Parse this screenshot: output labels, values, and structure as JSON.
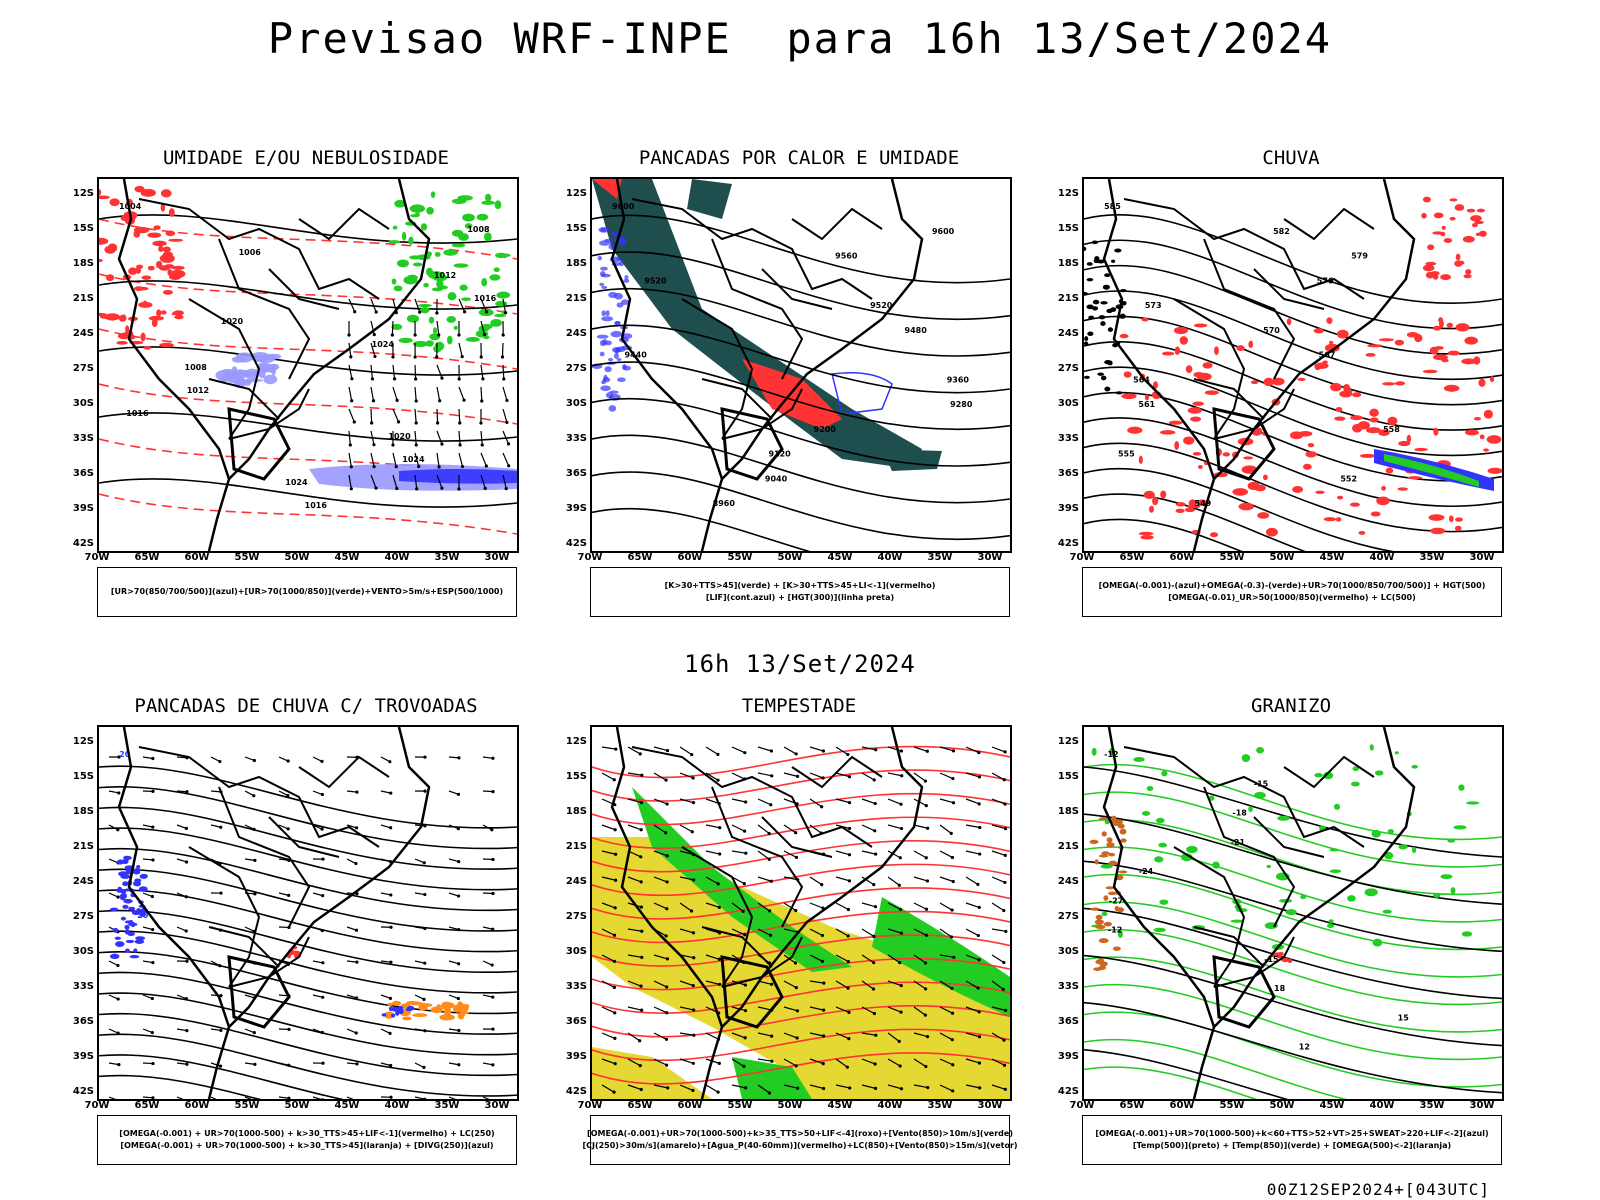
{
  "title": "Previsao WRF-INPE  para 16h 13/Set/2024",
  "subtitle": "16h 13/Set/2024",
  "footer": "00Z12SEP2024+[043UTC]",
  "lat_labels": [
    "12S",
    "15S",
    "18S",
    "21S",
    "24S",
    "27S",
    "30S",
    "33S",
    "36S",
    "39S",
    "42S"
  ],
  "lon_labels": [
    "70W",
    "65W",
    "60W",
    "55W",
    "50W",
    "45W",
    "40W",
    "35W",
    "30W"
  ],
  "colors": {
    "red": "#ff3333",
    "green": "#22cc22",
    "blue": "#3333ff",
    "lavender": "#9999ff",
    "orange": "#ff8c1a",
    "yellow": "#e5d832",
    "darkteal": "#1f4e4e"
  },
  "panels": [
    {
      "title": "UMIDADE E/OU NEBULOSIDADE",
      "legend": [
        "[UR>70(850/700/500)](azul)+[UR>70(1000/850)](verde)+VENTO>5m/s+ESP(500/1000)"
      ],
      "contour_labels": [
        "1004",
        "1008",
        "1006",
        "1012",
        "1016",
        "1020",
        "1024",
        "1008",
        "1012",
        "1016",
        "1020",
        "1024",
        "1024",
        "1016"
      ]
    },
    {
      "title": "PANCADAS POR CALOR E UMIDADE",
      "legend": [
        "[K>30+TTS>45](verde) + [K>30+TTS>45+LI<-1](vermelho)",
        "[LIF](cont.azul) + [HGT(300)](linha preta)"
      ],
      "contour_labels": [
        "9600",
        "9600",
        "9560",
        "9520",
        "9520",
        "9480",
        "9440",
        "9360",
        "9280",
        "9200",
        "9120",
        "9040",
        "8960"
      ]
    },
    {
      "title": "CHUVA",
      "legend": [
        "[OMEGA(-0.001)-(azul)+OMEGA(-0.3)-(verde)+UR>70(1000/850/700/500)] + HGT(500)",
        "[OMEGA(-0.01)_UR>50(1000/850)(vermelho) + LC(500)"
      ],
      "contour_labels": [
        "585",
        "582",
        "579",
        "576",
        "573",
        "570",
        "567",
        "564",
        "561",
        "558",
        "555",
        "552",
        "549"
      ]
    },
    {
      "title": "PANCADAS DE CHUVA C/ TROVOADAS",
      "legend": [
        "[OMEGA(-0.001) + UR>70(1000-500) + k>30_TTS>45+LIF<-1](vermelho) + LC(250)",
        "[OMEGA(-0.001) + UR>70(1000-500) + k>30_TTS>45](laranja) + [DIVG(250)](azul)"
      ],
      "contour_labels": [
        "20",
        "20"
      ]
    },
    {
      "title": "TEMPESTADE",
      "legend": [
        "[OMEGA(-0.001)+UR>70(1000-500)+k>35_TTS>50+LIF<-4](roxo)+[Vento(850)>10m/s](verde)",
        "[CJ(250)>30m/s](amarelo)+[Agua_P(40-60mm)](vermelho)+LC(850)+[Vento(850)>15m/s](vetor)"
      ],
      "contour_labels": []
    },
    {
      "title": "GRANIZO",
      "legend": [
        "[OMEGA(-0.001)+UR>70(1000-500)+k<60+TTS>52+VT>25+SWEAT>220+LIF<-2](azul)",
        "[Temp(500)](preto) + [Temp(850)](verde) + [OMEGA(500)<-2](laranja)"
      ],
      "contour_labels": [
        "-12",
        "-15",
        "-18",
        "-21",
        "-24",
        "-27",
        "-12",
        "-15",
        "18",
        "15",
        "12"
      ]
    }
  ]
}
